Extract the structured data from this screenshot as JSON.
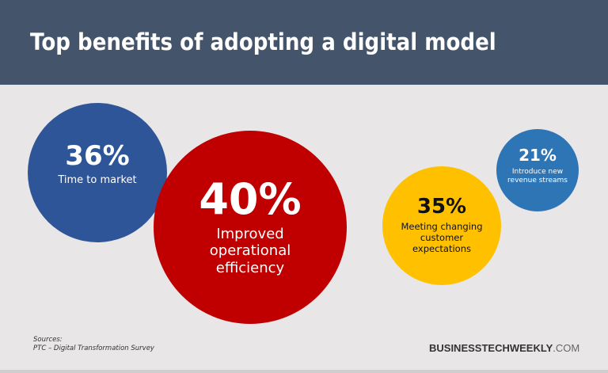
{
  "header": {
    "title": "Top benefits of adopting a digital model"
  },
  "chart_data": {
    "type": "bubble",
    "title": "Top benefits of adopting a digital model",
    "items": [
      {
        "value": 36,
        "display": "36%",
        "label": "Time to market",
        "color": "#2e5597"
      },
      {
        "value": 40,
        "display": "40%",
        "label": "Improved operational efficiency",
        "color": "#c00000"
      },
      {
        "value": 35,
        "display": "35%",
        "label": "Meeting changing customer expectations",
        "color": "#ffc000"
      },
      {
        "value": 21,
        "display": "21%",
        "label": "Introduce new revenue streams",
        "color": "#2e75b6"
      }
    ]
  },
  "footer": {
    "sources_heading": "Sources:",
    "source": "PTC – Digital Transformation Survey",
    "brand_bold": "BUSINESSTECHWEEKLY",
    "brand_suffix": ".COM"
  }
}
